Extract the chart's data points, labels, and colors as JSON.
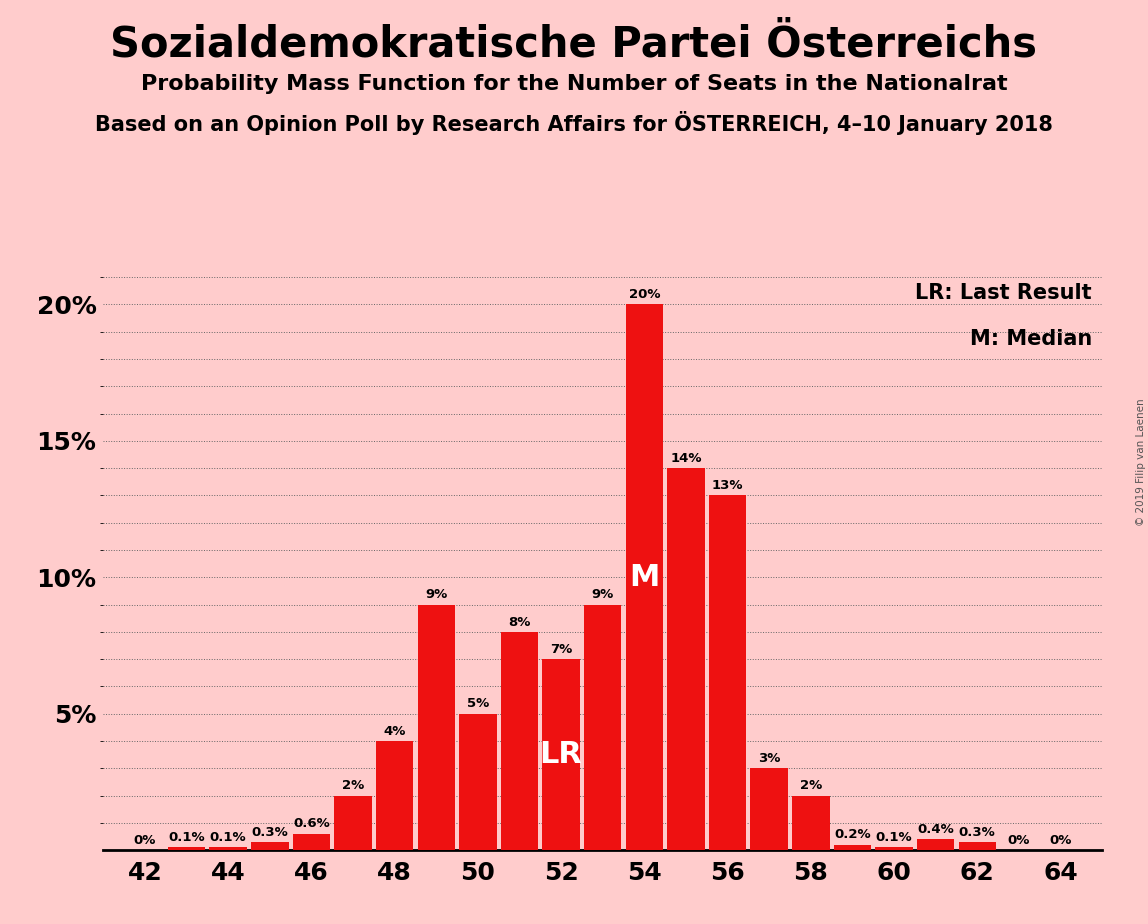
{
  "title": "Sozialdemokratische Partei Österreichs",
  "subtitle1": "Probability Mass Function for the Number of Seats in the Nationalrat",
  "subtitle2": "Based on an Opinion Poll by Research Affairs for ÖSTERREICH, 4–10 January 2018",
  "copyright": "© 2019 Filip van Laenen",
  "seats": [
    42,
    43,
    44,
    45,
    46,
    47,
    48,
    49,
    50,
    51,
    52,
    53,
    54,
    55,
    56,
    57,
    58,
    59,
    60,
    61,
    62,
    63,
    64
  ],
  "probabilities": [
    0.0,
    0.1,
    0.1,
    0.3,
    0.6,
    2.0,
    4.0,
    9.0,
    5.0,
    8.0,
    7.0,
    9.0,
    20.0,
    14.0,
    13.0,
    3.0,
    2.0,
    0.2,
    0.1,
    0.4,
    0.3,
    0.0,
    0.0
  ],
  "bar_color": "#ee1111",
  "background_color": "#ffcccc",
  "text_color": "#000000",
  "lr_seat": 52,
  "median_seat": 54,
  "ylim": [
    0,
    21
  ],
  "yticks": [
    0,
    5,
    10,
    15,
    20
  ],
  "ytick_labels": [
    "",
    "5%",
    "10%",
    "15%",
    "20%"
  ],
  "legend_lr": "LR: Last Result",
  "legend_m": "M: Median"
}
